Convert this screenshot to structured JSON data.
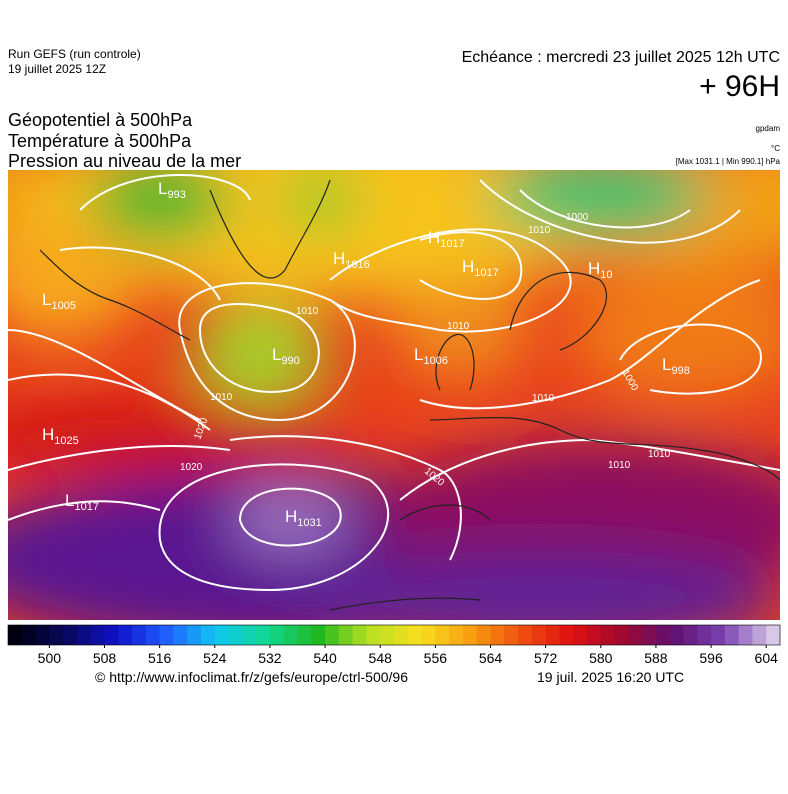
{
  "header": {
    "run": "Run GEFS (run controle)",
    "run_date": "19 juillet 2025 12Z",
    "valid": "Echéance : mercredi 23 juillet 2025 12h UTC",
    "lead": "+ 96H",
    "fields": [
      "Géopotentiel à 500hPa",
      "Température à 500hPa",
      "Pression au niveau de la mer"
    ],
    "units": [
      "gpdam",
      "°C",
      "[Max 1031.1 | Min 990.1] hPa"
    ]
  },
  "map": {
    "centers": [
      {
        "kind": "L",
        "value": "993"
      },
      {
        "kind": "H",
        "value": "1017"
      },
      {
        "kind": "H",
        "value": "1016"
      },
      {
        "kind": "H",
        "value": "1017"
      },
      {
        "kind": "H",
        "value": "10"
      },
      {
        "kind": "L",
        "value": "1005"
      },
      {
        "kind": "L",
        "value": "990"
      },
      {
        "kind": "L",
        "value": "1006"
      },
      {
        "kind": "L",
        "value": "998"
      },
      {
        "kind": "H",
        "value": "1025"
      },
      {
        "kind": "L",
        "value": "1017"
      },
      {
        "kind": "H",
        "value": "1031"
      }
    ],
    "isobar_labels": [
      "1000",
      "1010",
      "1010",
      "1010",
      "1010",
      "1000",
      "1010",
      "1020",
      "1020",
      "1020",
      "1010",
      "1010"
    ]
  },
  "colorbar": {
    "range": [
      494,
      606
    ],
    "ticks": [
      500,
      508,
      516,
      524,
      532,
      540,
      548,
      556,
      564,
      572,
      580,
      588,
      596,
      604
    ]
  },
  "footer": {
    "url": "© http://www.infoclimat.fr/z/gefs/europe/ctrl-500/96",
    "generated": "19 juil. 2025 16:20 UTC"
  }
}
